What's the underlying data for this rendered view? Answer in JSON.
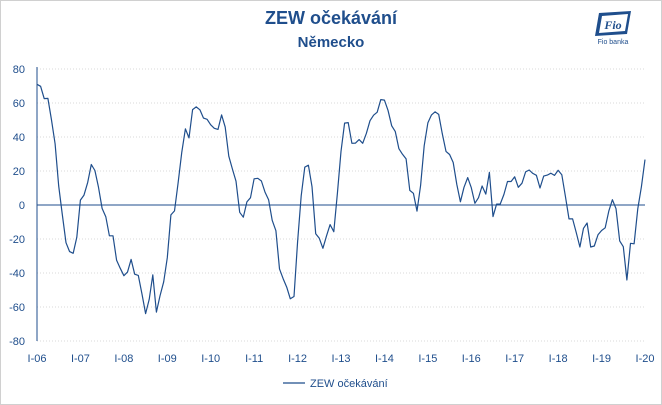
{
  "title": "ZEW očekávání",
  "subtitle": "Německo",
  "logo_text": "Fio banka",
  "logo_mark": "Fio",
  "colors": {
    "line": "#1f4e8c",
    "text": "#1f4e8c",
    "grid": "#d9d9d9"
  },
  "chart_data": {
    "type": "line",
    "ylim": [
      -80,
      80
    ],
    "yticks": [
      -80,
      -60,
      -40,
      -20,
      0,
      20,
      40,
      60,
      80
    ],
    "grid": "horizontal",
    "legend_position": "bottom",
    "x": [
      "2006-01",
      "2006-02",
      "2006-03",
      "2006-04",
      "2006-05",
      "2006-06",
      "2006-07",
      "2006-08",
      "2006-09",
      "2006-10",
      "2006-11",
      "2006-12",
      "2007-01",
      "2007-02",
      "2007-03",
      "2007-04",
      "2007-05",
      "2007-06",
      "2007-07",
      "2007-08",
      "2007-09",
      "2007-10",
      "2007-11",
      "2007-12",
      "2008-01",
      "2008-02",
      "2008-03",
      "2008-04",
      "2008-05",
      "2008-06",
      "2008-07",
      "2008-08",
      "2008-09",
      "2008-10",
      "2008-11",
      "2008-12",
      "2009-01",
      "2009-02",
      "2009-03",
      "2009-04",
      "2009-05",
      "2009-06",
      "2009-07",
      "2009-08",
      "2009-09",
      "2009-10",
      "2009-11",
      "2009-12",
      "2010-01",
      "2010-02",
      "2010-03",
      "2010-04",
      "2010-05",
      "2010-06",
      "2010-07",
      "2010-08",
      "2010-09",
      "2010-10",
      "2010-11",
      "2010-12",
      "2011-01",
      "2011-02",
      "2011-03",
      "2011-04",
      "2011-05",
      "2011-06",
      "2011-07",
      "2011-08",
      "2011-09",
      "2011-10",
      "2011-11",
      "2011-12",
      "2012-01",
      "2012-02",
      "2012-03",
      "2012-04",
      "2012-05",
      "2012-06",
      "2012-07",
      "2012-08",
      "2012-09",
      "2012-10",
      "2012-11",
      "2012-12",
      "2013-01",
      "2013-02",
      "2013-03",
      "2013-04",
      "2013-05",
      "2013-06",
      "2013-07",
      "2013-08",
      "2013-09",
      "2013-10",
      "2013-11",
      "2013-12",
      "2014-01",
      "2014-02",
      "2014-03",
      "2014-04",
      "2014-05",
      "2014-06",
      "2014-07",
      "2014-08",
      "2014-09",
      "2014-10",
      "2014-11",
      "2014-12",
      "2015-01",
      "2015-02",
      "2015-03",
      "2015-04",
      "2015-05",
      "2015-06",
      "2015-07",
      "2015-08",
      "2015-09",
      "2015-10",
      "2015-11",
      "2015-12",
      "2016-01",
      "2016-02",
      "2016-03",
      "2016-04",
      "2016-05",
      "2016-06",
      "2016-07",
      "2016-08",
      "2016-09",
      "2016-10",
      "2016-11",
      "2016-12",
      "2017-01",
      "2017-02",
      "2017-03",
      "2017-04",
      "2017-05",
      "2017-06",
      "2017-07",
      "2017-08",
      "2017-09",
      "2017-10",
      "2017-11",
      "2017-12",
      "2018-01",
      "2018-02",
      "2018-03",
      "2018-04",
      "2018-05",
      "2018-06",
      "2018-07",
      "2018-08",
      "2018-09",
      "2018-10",
      "2018-11",
      "2018-12",
      "2019-01",
      "2019-02",
      "2019-03",
      "2019-04",
      "2019-05",
      "2019-06",
      "2019-07",
      "2019-08",
      "2019-09",
      "2019-10",
      "2019-11",
      "2019-12",
      "2020-01"
    ],
    "x_tick_labels": [
      "I-06",
      "I-07",
      "I-08",
      "I-09",
      "I-10",
      "I-11",
      "I-12",
      "I-13",
      "I-14",
      "I-15",
      "I-16",
      "I-17",
      "I-18",
      "I-19",
      "I-20"
    ],
    "series": [
      {
        "name": "ZEW očekávání",
        "values": [
          71.0,
          69.8,
          62.6,
          62.7,
          50.0,
          36.0,
          11.2,
          -5.6,
          -22.2,
          -27.4,
          -28.4,
          -19.0,
          2.9,
          5.8,
          13.3,
          23.8,
          20.3,
          10.4,
          -2.0,
          -6.9,
          -18.1,
          -18.1,
          -32.5,
          -37.2,
          -41.6,
          -39.5,
          -32.0,
          -40.7,
          -41.4,
          -52.4,
          -63.9,
          -55.5,
          -41.1,
          -63.0,
          -53.5,
          -45.2,
          -31.0,
          -5.8,
          -3.5,
          13.0,
          31.1,
          44.8,
          39.5,
          56.1,
          57.7,
          56.0,
          51.1,
          50.4,
          47.2,
          45.1,
          44.5,
          53.0,
          45.8,
          28.7,
          21.2,
          14.0,
          -4.3,
          -7.2,
          1.8,
          4.3,
          15.4,
          15.7,
          14.1,
          7.6,
          3.1,
          -9.0,
          -15.1,
          -37.6,
          -43.3,
          -48.3,
          -55.2,
          -53.8,
          -21.6,
          5.4,
          22.3,
          23.4,
          10.8,
          -16.9,
          -19.6,
          -25.5,
          -18.2,
          -11.5,
          -15.7,
          6.9,
          31.5,
          48.2,
          48.5,
          36.3,
          36.4,
          38.5,
          36.3,
          42.0,
          49.6,
          52.8,
          54.6,
          62.0,
          61.7,
          55.7,
          46.6,
          43.2,
          33.1,
          29.8,
          27.1,
          8.6,
          6.9,
          -3.6,
          11.5,
          34.9,
          48.4,
          53.0,
          54.8,
          53.3,
          41.9,
          31.5,
          29.7,
          25.0,
          12.1,
          1.9,
          10.4,
          16.1,
          10.2,
          1.0,
          4.3,
          11.2,
          6.4,
          19.2,
          -6.8,
          0.5,
          0.5,
          6.2,
          13.8,
          13.8,
          16.6,
          10.4,
          12.8,
          19.5,
          20.6,
          18.6,
          17.5,
          10.0,
          17.0,
          17.6,
          18.7,
          17.4,
          20.4,
          17.8,
          5.1,
          -8.2,
          -8.2,
          -16.1,
          -24.7,
          -13.7,
          -10.6,
          -24.7,
          -24.1,
          -17.5,
          -15.0,
          -13.4,
          -3.6,
          3.1,
          -2.1,
          -21.1,
          -24.5,
          -44.1,
          -22.5,
          -22.8,
          -2.1,
          10.7,
          26.7
        ]
      }
    ]
  }
}
